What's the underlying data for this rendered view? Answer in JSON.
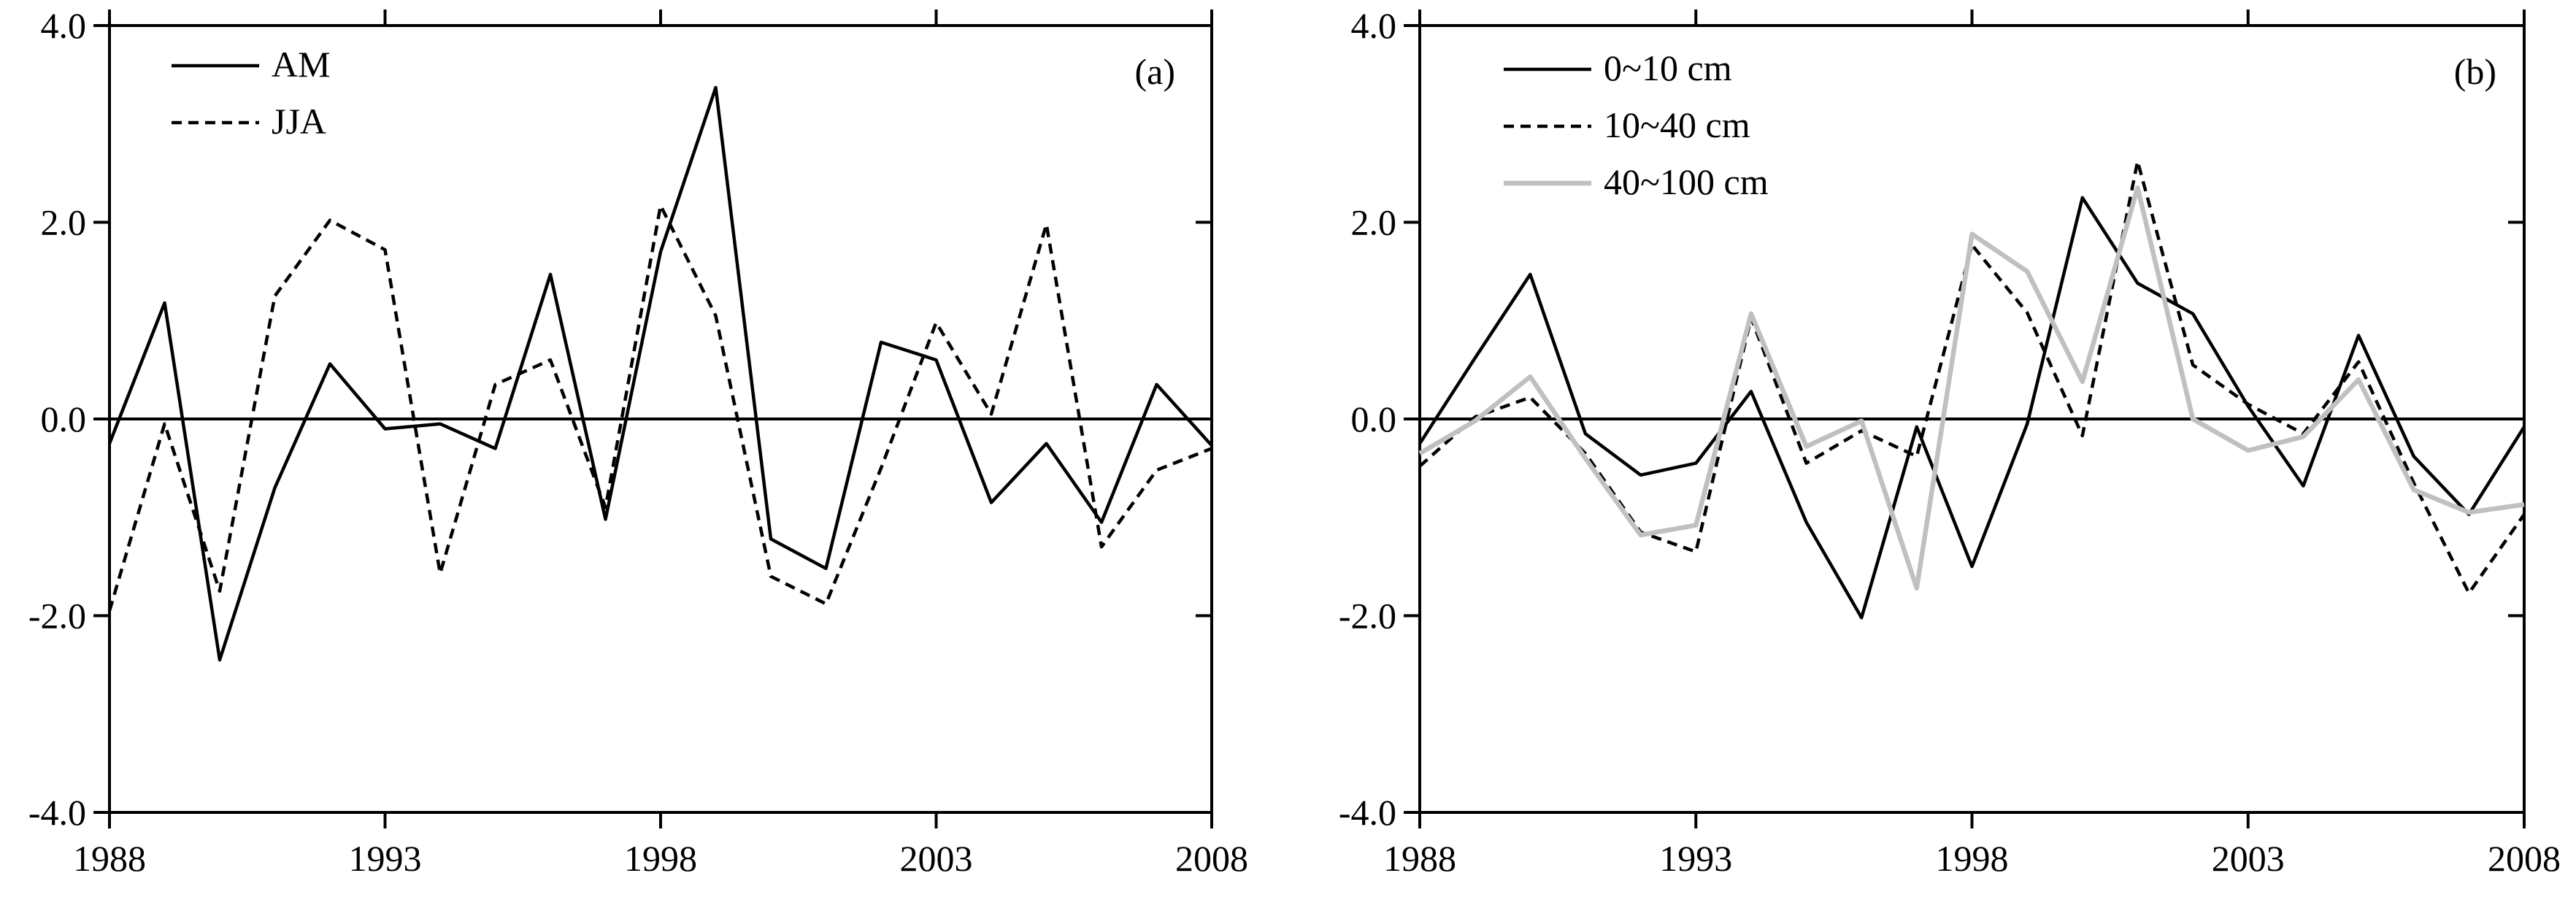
{
  "chart_data": [
    {
      "type": "line",
      "panel_label": "(a)",
      "xlim": [
        1988,
        2008
      ],
      "ylim": [
        -4.0,
        4.0
      ],
      "x_ticks": [
        1988,
        1993,
        1998,
        2003,
        2008
      ],
      "x_tick_labels": [
        "1988",
        "1993",
        "1998",
        "2003",
        "2008"
      ],
      "y_ticks": [
        4.0,
        2.0,
        0.0,
        -2.0,
        -4.0
      ],
      "y_tick_labels": [
        "4.0",
        "2.0",
        "0.0",
        "-2.0",
        "-4.0"
      ],
      "legend_position": "top-left",
      "x": [
        1988,
        1989,
        1990,
        1991,
        1992,
        1993,
        1994,
        1995,
        1996,
        1997,
        1998,
        1999,
        2000,
        2001,
        2002,
        2003,
        2004,
        2005,
        2006,
        2007,
        2008
      ],
      "series": [
        {
          "name": "AM",
          "style": "solid",
          "color": "#000000",
          "values": [
            -0.25,
            1.18,
            -2.45,
            -0.7,
            0.56,
            -0.1,
            -0.05,
            -0.3,
            1.47,
            -1.02,
            1.7,
            3.37,
            -1.22,
            -1.52,
            0.78,
            0.6,
            -0.85,
            -0.25,
            -1.05,
            0.35,
            -0.27
          ]
        },
        {
          "name": "JJA",
          "style": "dashed",
          "color": "#000000",
          "values": [
            -1.95,
            -0.05,
            -1.75,
            1.25,
            2.02,
            1.72,
            -1.57,
            0.35,
            0.6,
            -0.9,
            2.17,
            1.05,
            -1.6,
            -1.88,
            -0.5,
            0.98,
            0.05,
            1.98,
            -1.3,
            -0.52,
            -0.3
          ]
        }
      ]
    },
    {
      "type": "line",
      "panel_label": "(b)",
      "xlim": [
        1988,
        2008
      ],
      "ylim": [
        -4.0,
        4.0
      ],
      "x_ticks": [
        1988,
        1993,
        1998,
        2003,
        2008
      ],
      "x_tick_labels": [
        "1988",
        "1993",
        "1998",
        "2003",
        "2008"
      ],
      "y_ticks": [
        4.0,
        2.0,
        0.0,
        -2.0,
        -4.0
      ],
      "y_tick_labels": [
        "4.0",
        "2.0",
        "0.0",
        "-2.0",
        "-4.0"
      ],
      "legend_position": "top-left",
      "x": [
        1988,
        1989,
        1990,
        1991,
        1992,
        1993,
        1994,
        1995,
        1996,
        1997,
        1998,
        1999,
        2000,
        2001,
        2002,
        2003,
        2004,
        2005,
        2006,
        2007,
        2008
      ],
      "series": [
        {
          "name": "0~10 cm",
          "style": "solid",
          "color": "#000000",
          "values": [
            -0.25,
            0.62,
            1.47,
            -0.15,
            -0.57,
            -0.45,
            0.28,
            -1.05,
            -2.02,
            -0.08,
            -1.5,
            -0.05,
            2.25,
            1.38,
            1.07,
            0.13,
            -0.68,
            0.85,
            -0.38,
            -0.97,
            -0.08
          ]
        },
        {
          "name": "10~40 cm",
          "style": "dashed",
          "color": "#000000",
          "values": [
            -0.48,
            0.02,
            0.22,
            -0.35,
            -1.15,
            -1.35,
            1.03,
            -0.45,
            -0.12,
            -0.38,
            1.77,
            1.08,
            -0.17,
            2.62,
            0.55,
            0.15,
            -0.15,
            0.58,
            -0.65,
            -1.77,
            -0.97
          ]
        },
        {
          "name": "40~100 cm",
          "style": "solid",
          "color": "#c0c0c0",
          "values": [
            -0.35,
            -0.02,
            0.43,
            -0.4,
            -1.18,
            -1.08,
            1.07,
            -0.28,
            -0.02,
            -1.72,
            1.88,
            1.5,
            0.38,
            2.35,
            0.0,
            -0.32,
            -0.18,
            0.4,
            -0.72,
            -0.95,
            -0.87
          ]
        }
      ]
    }
  ]
}
